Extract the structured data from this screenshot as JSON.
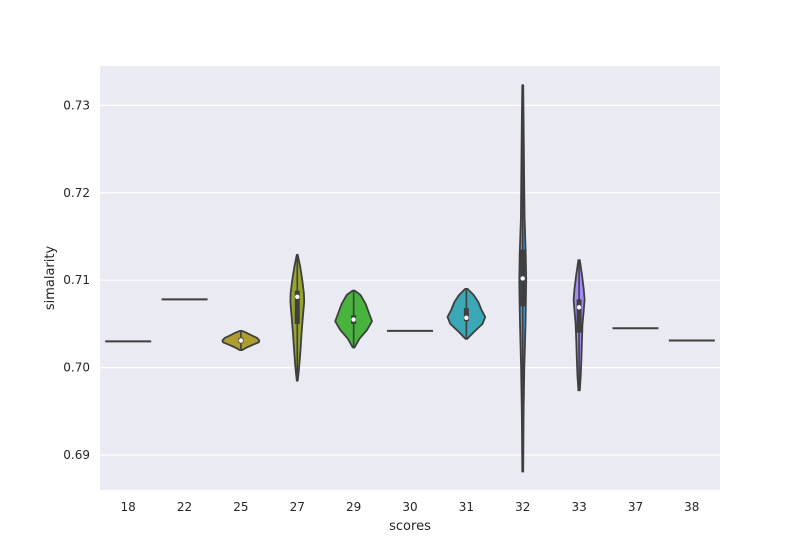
{
  "chart_data": {
    "type": "violin",
    "xlabel": "scores",
    "ylabel": "simalarity",
    "ylim": [
      0.686,
      0.7345
    ],
    "yticks": [
      0.69,
      0.7,
      0.71,
      0.72,
      0.73
    ],
    "ytick_labels": [
      "0.69",
      "0.70",
      "0.71",
      "0.72",
      "0.73"
    ],
    "grid": true,
    "categories": [
      "18",
      "22",
      "25",
      "27",
      "29",
      "30",
      "31",
      "32",
      "33",
      "37",
      "38"
    ],
    "violins": [
      {
        "category": "18",
        "color": "#f77189",
        "min": 0.703,
        "q1": 0.703,
        "median": 0.703,
        "q3": 0.703,
        "max": 0.703,
        "profile": [
          [
            0.703,
            1.0
          ]
        ]
      },
      {
        "category": "22",
        "color": "#dc8932",
        "min": 0.7078,
        "q1": 0.7078,
        "median": 0.7078,
        "q3": 0.7078,
        "max": 0.7078,
        "profile": [
          [
            0.7078,
            1.0
          ]
        ]
      },
      {
        "category": "25",
        "color": "#ae9d31",
        "min": 0.702,
        "q1": 0.7028,
        "median": 0.7031,
        "q3": 0.7034,
        "max": 0.7042,
        "profile": [
          [
            0.702,
            0.05
          ],
          [
            0.7023,
            0.25
          ],
          [
            0.7026,
            0.5
          ],
          [
            0.7029,
            0.78
          ],
          [
            0.7031,
            0.8
          ],
          [
            0.7034,
            0.7
          ],
          [
            0.7037,
            0.46
          ],
          [
            0.704,
            0.22
          ],
          [
            0.7042,
            0.05
          ]
        ]
      },
      {
        "category": "27",
        "color": "#97a431",
        "min": 0.6985,
        "q1": 0.705,
        "median": 0.7081,
        "q3": 0.7088,
        "max": 0.7129,
        "profile": [
          [
            0.6985,
            0.02
          ],
          [
            0.7,
            0.08
          ],
          [
            0.702,
            0.14
          ],
          [
            0.704,
            0.19
          ],
          [
            0.706,
            0.25
          ],
          [
            0.7075,
            0.3
          ],
          [
            0.7085,
            0.29
          ],
          [
            0.71,
            0.22
          ],
          [
            0.7115,
            0.13
          ],
          [
            0.7129,
            0.02
          ]
        ]
      },
      {
        "category": "29",
        "color": "#48b43d",
        "min": 0.7023,
        "q1": 0.705,
        "median": 0.7055,
        "q3": 0.706,
        "max": 0.7088,
        "profile": [
          [
            0.7023,
            0.04
          ],
          [
            0.7033,
            0.25
          ],
          [
            0.7043,
            0.58
          ],
          [
            0.7053,
            0.8
          ],
          [
            0.7063,
            0.66
          ],
          [
            0.7073,
            0.52
          ],
          [
            0.7083,
            0.3
          ],
          [
            0.7088,
            0.05
          ]
        ]
      },
      {
        "category": "30",
        "color": "#36ada4",
        "min": 0.7042,
        "q1": 0.7042,
        "median": 0.7042,
        "q3": 0.7042,
        "max": 0.7042,
        "profile": [
          [
            0.7042,
            1.0
          ]
        ]
      },
      {
        "category": "31",
        "color": "#3aa8b6",
        "min": 0.7033,
        "q1": 0.7053,
        "median": 0.7057,
        "q3": 0.7068,
        "max": 0.709,
        "profile": [
          [
            0.7033,
            0.04
          ],
          [
            0.704,
            0.3
          ],
          [
            0.705,
            0.7
          ],
          [
            0.7058,
            0.82
          ],
          [
            0.7066,
            0.66
          ],
          [
            0.7075,
            0.52
          ],
          [
            0.7083,
            0.32
          ],
          [
            0.709,
            0.05
          ]
        ]
      },
      {
        "category": "32",
        "color": "#3ba3ec",
        "min": 0.6881,
        "q1": 0.707,
        "median": 0.7102,
        "q3": 0.7135,
        "max": 0.7323,
        "profile": [
          [
            0.6881,
            0.02
          ],
          [
            0.695,
            0.04
          ],
          [
            0.7,
            0.07
          ],
          [
            0.705,
            0.12
          ],
          [
            0.708,
            0.14
          ],
          [
            0.71,
            0.15
          ],
          [
            0.713,
            0.13
          ],
          [
            0.717,
            0.08
          ],
          [
            0.722,
            0.06
          ],
          [
            0.728,
            0.04
          ],
          [
            0.7323,
            0.02
          ]
        ]
      },
      {
        "category": "33",
        "color": "#a48cf4",
        "min": 0.6974,
        "q1": 0.704,
        "median": 0.7069,
        "q3": 0.7078,
        "max": 0.7123,
        "profile": [
          [
            0.6974,
            0.03
          ],
          [
            0.699,
            0.07
          ],
          [
            0.701,
            0.1
          ],
          [
            0.703,
            0.12
          ],
          [
            0.705,
            0.15
          ],
          [
            0.7065,
            0.2
          ],
          [
            0.7078,
            0.24
          ],
          [
            0.709,
            0.2
          ],
          [
            0.7105,
            0.13
          ],
          [
            0.7123,
            0.03
          ]
        ]
      },
      {
        "category": "37",
        "color": "#e866d3",
        "min": 0.7045,
        "q1": 0.7045,
        "median": 0.7045,
        "q3": 0.7045,
        "max": 0.7045,
        "profile": [
          [
            0.7045,
            1.0
          ]
        ]
      },
      {
        "category": "38",
        "color": "#f668b3",
        "min": 0.7031,
        "q1": 0.7031,
        "median": 0.7031,
        "q3": 0.7031,
        "max": 0.7031,
        "profile": [
          [
            0.7031,
            1.0
          ]
        ]
      }
    ]
  }
}
